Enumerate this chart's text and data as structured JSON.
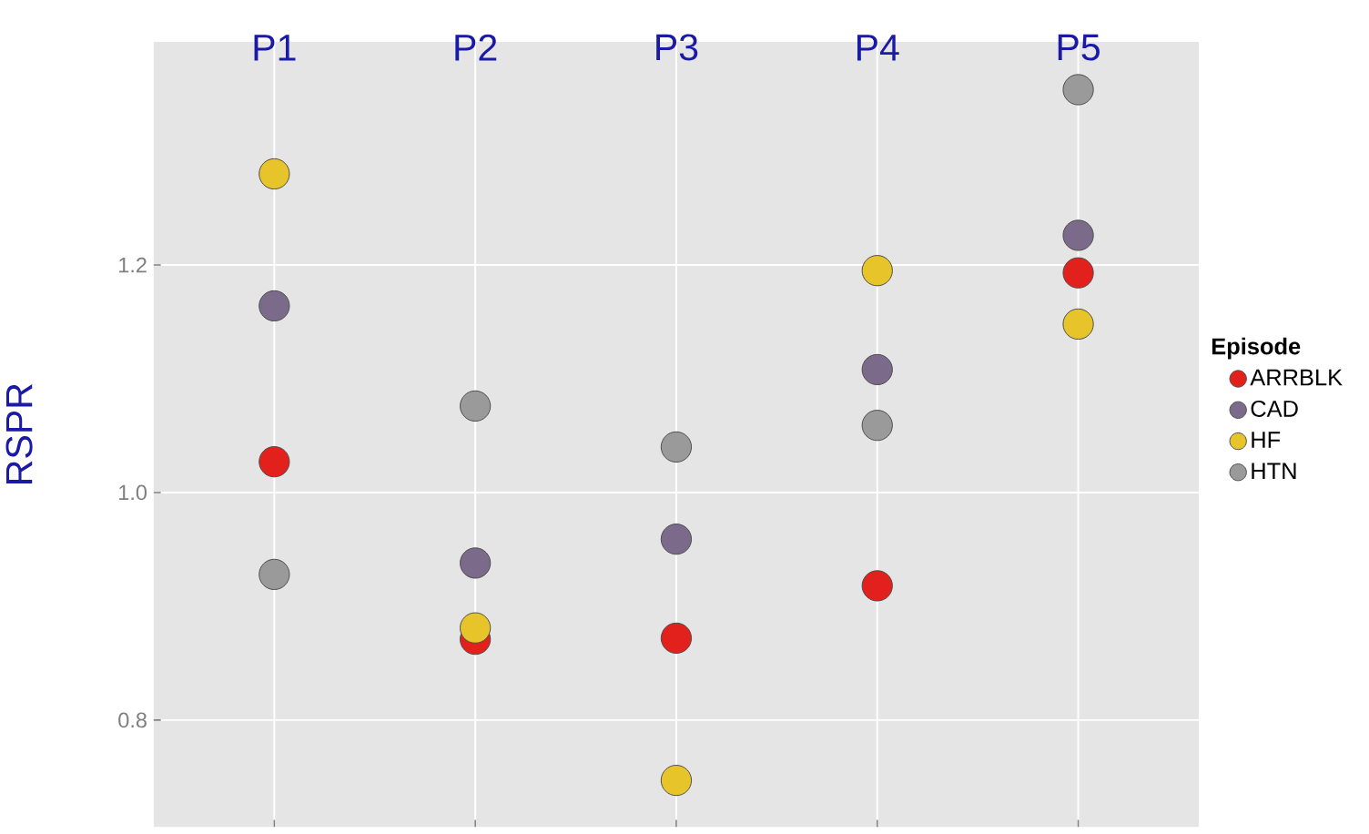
{
  "chart_data": {
    "type": "scatter",
    "ylabel": "RSPR",
    "legend_title": "Episode",
    "categories": [
      "P1",
      "P2",
      "P3",
      "P4",
      "P5"
    ],
    "series": [
      {
        "name": "ARRBLK",
        "color": "#e3211c",
        "values": [
          1.027,
          0.871,
          0.872,
          0.918,
          1.193
        ]
      },
      {
        "name": "CAD",
        "color": "#7b6a8a",
        "values": [
          1.164,
          0.938,
          0.959,
          1.108,
          1.226
        ]
      },
      {
        "name": "HF",
        "color": "#e6c42a",
        "values": [
          1.28,
          0.881,
          0.747,
          1.195,
          1.148
        ]
      },
      {
        "name": "HTN",
        "color": "#9a9a9a",
        "values": [
          0.928,
          1.076,
          1.04,
          1.059,
          1.354
        ]
      }
    ],
    "ylim": [
      0.706,
      1.396
    ],
    "yticks": [
      {
        "value": 0.8,
        "label": "0.8"
      },
      {
        "value": 1.0,
        "label": "1.0"
      },
      {
        "value": 1.2,
        "label": "1.2"
      }
    ],
    "grid": true,
    "legend": "right",
    "marker": "circle"
  }
}
